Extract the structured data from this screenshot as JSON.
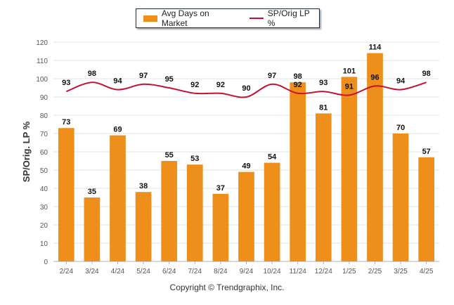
{
  "legend": {
    "bar_label": "Avg Days on Market",
    "line_label": "SP/Orig LP %"
  },
  "copyright": "Copyright © Trendgraphix, Inc.",
  "colors": {
    "bar": "#ee8f1c",
    "line": "#c8102e",
    "grid": "#e2e2e2",
    "axis_text": "#555555"
  },
  "chart_data": {
    "type": "bar",
    "ylabel": "SP/Orig. LP %",
    "ylim": [
      0,
      120
    ],
    "yticks": [
      0,
      10,
      20,
      30,
      40,
      50,
      60,
      70,
      80,
      90,
      100,
      110,
      120
    ],
    "grid": true,
    "legend_position": "top-center",
    "categories": [
      "2/24",
      "3/24",
      "4/24",
      "5/24",
      "6/24",
      "7/24",
      "8/24",
      "9/24",
      "10/24",
      "11/24",
      "12/24",
      "1/25",
      "2/25",
      "3/25",
      "4/25"
    ],
    "series": [
      {
        "name": "Avg Days on Market",
        "type": "bar",
        "values": [
          73,
          35,
          69,
          38,
          55,
          53,
          37,
          49,
          54,
          98,
          81,
          101,
          114,
          70,
          57
        ]
      },
      {
        "name": "SP/Orig LP %",
        "type": "line",
        "values": [
          93,
          98,
          94,
          97,
          95,
          92,
          92,
          90,
          97,
          92,
          93,
          91,
          96,
          94,
          98
        ]
      }
    ]
  }
}
